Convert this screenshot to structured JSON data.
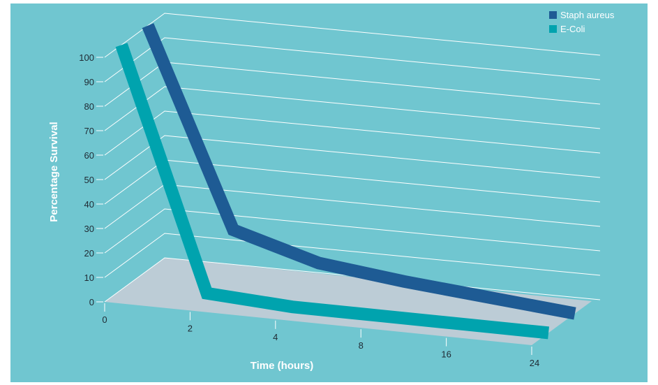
{
  "chart_data": {
    "type": "line",
    "title": "",
    "xlabel": "Time (hours)",
    "ylabel": "Percentage Survival",
    "categories": [
      "0",
      "2",
      "4",
      "8",
      "16",
      "24"
    ],
    "ylim": [
      0,
      100
    ],
    "y_ticks": [
      "0",
      "10",
      "20",
      "30",
      "40",
      "50",
      "60",
      "70",
      "80",
      "90",
      "100"
    ],
    "grid": true,
    "legend_position": "top-right",
    "three_d": true,
    "series": [
      {
        "name": "Staph aureus",
        "values": [
          100,
          20,
          10,
          6,
          3,
          0
        ],
        "color": "#1e5b94"
      },
      {
        "name": "E-Coli",
        "values": [
          100,
          2,
          0,
          0,
          0,
          0
        ],
        "color": "#00a3ae"
      }
    ]
  },
  "colors": {
    "background": "#70c6d0",
    "floor": "#c9ccd7",
    "gridline": "#ffffff"
  }
}
